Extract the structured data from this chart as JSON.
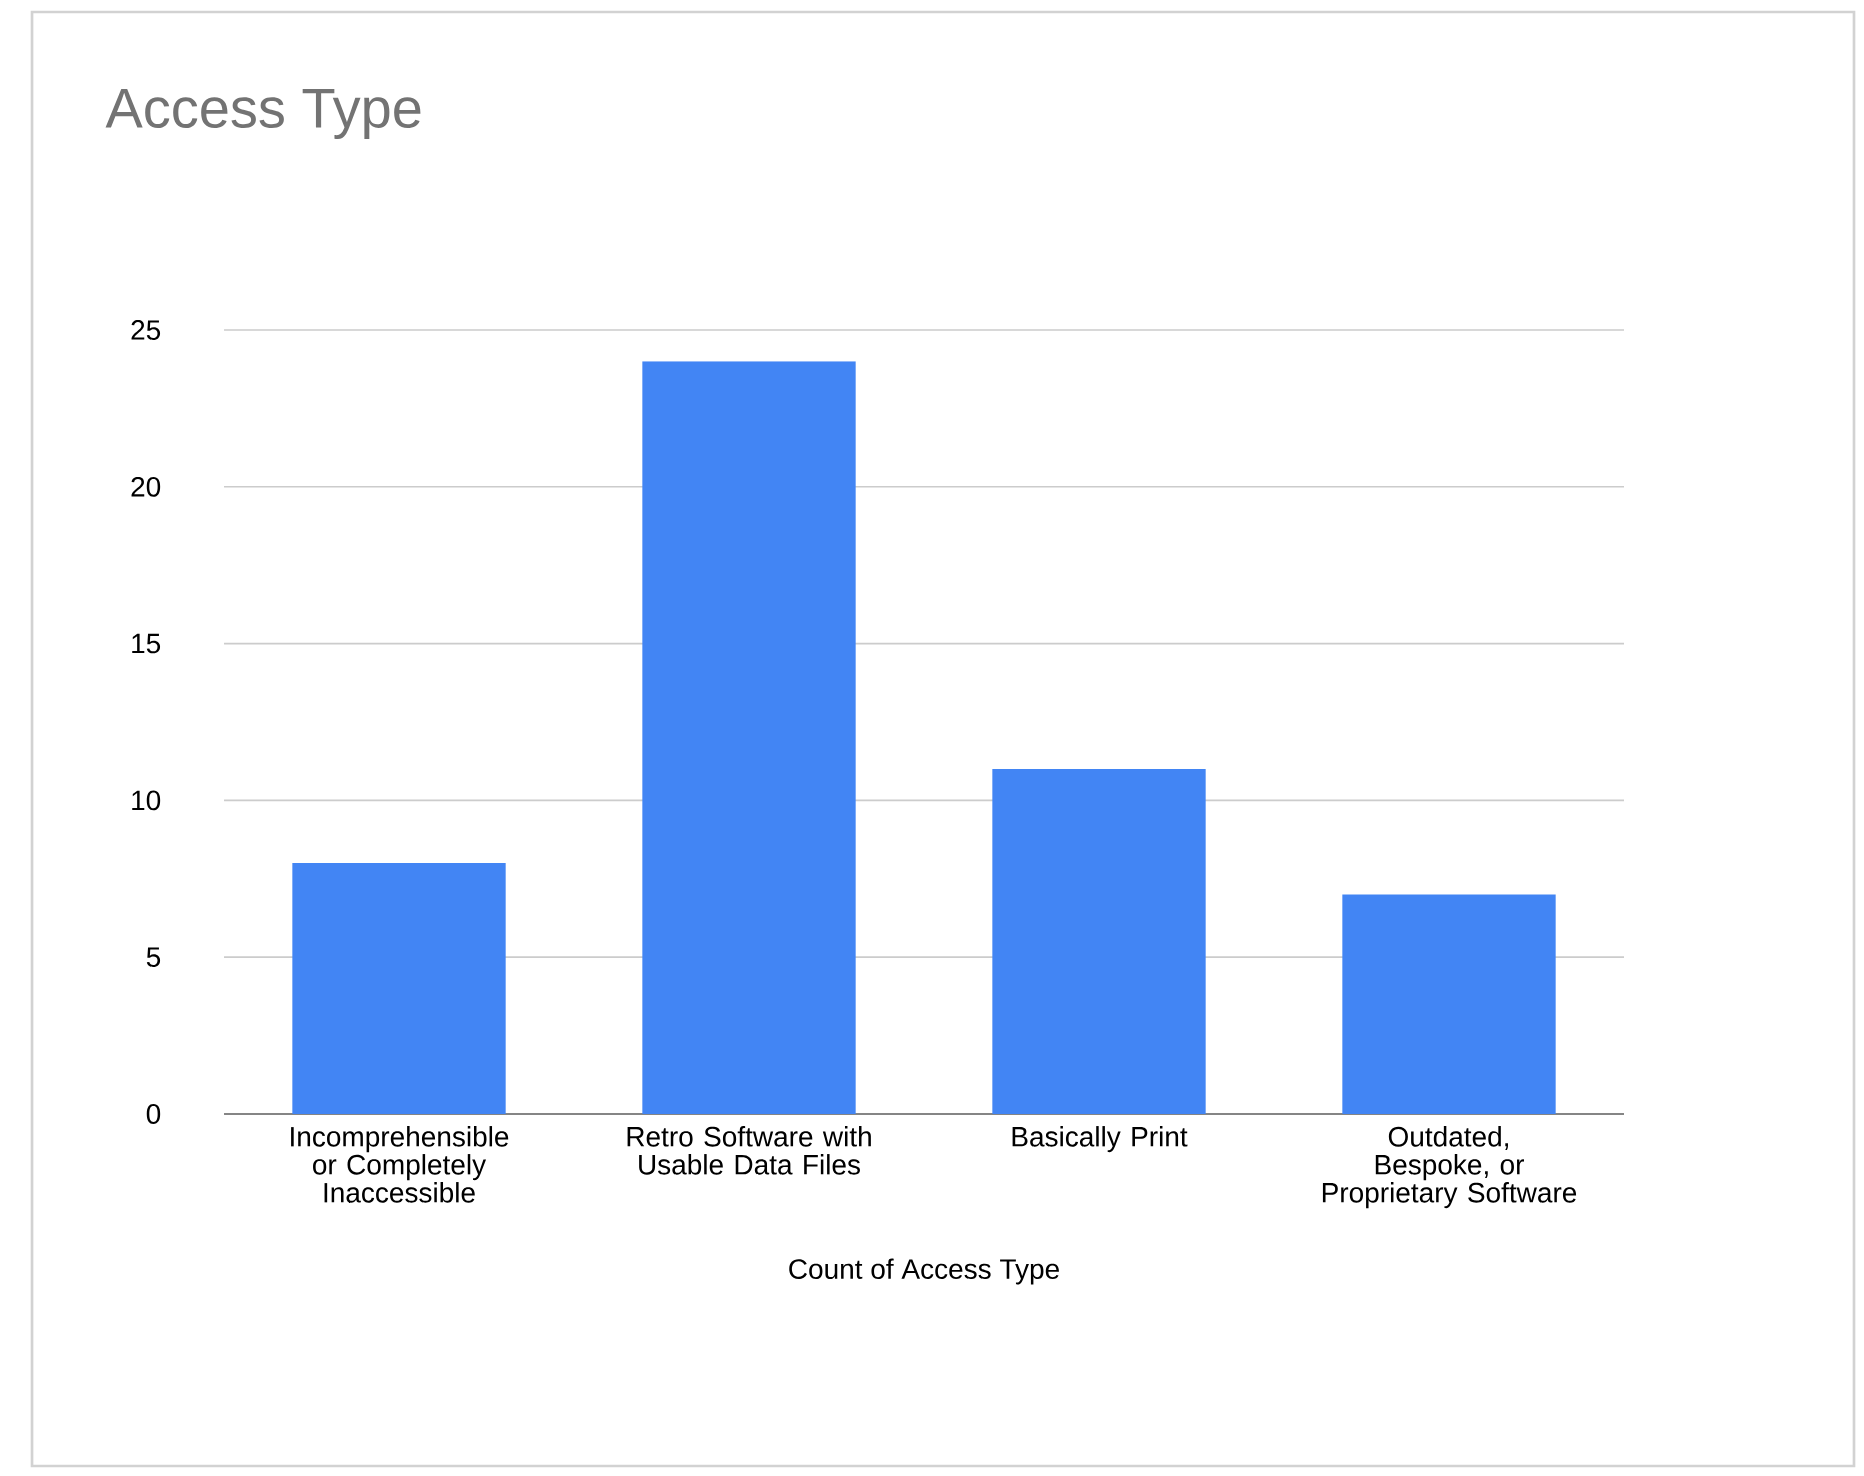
{
  "chart_data": {
    "type": "bar",
    "title": "Access Type",
    "xlabel": "Count of Access Type",
    "categories": [
      "Incomprehensible or Completely Inaccessible",
      "Retro Software with Usable Data Files",
      "Basically Print",
      "Outdated, Bespoke, or Proprietary Software"
    ],
    "values": [
      8,
      24,
      11,
      7
    ],
    "color": "#4285f4",
    "ylim": [
      0,
      25
    ],
    "yticks": [
      0,
      5,
      10,
      15,
      20,
      25
    ],
    "grid": "y"
  }
}
